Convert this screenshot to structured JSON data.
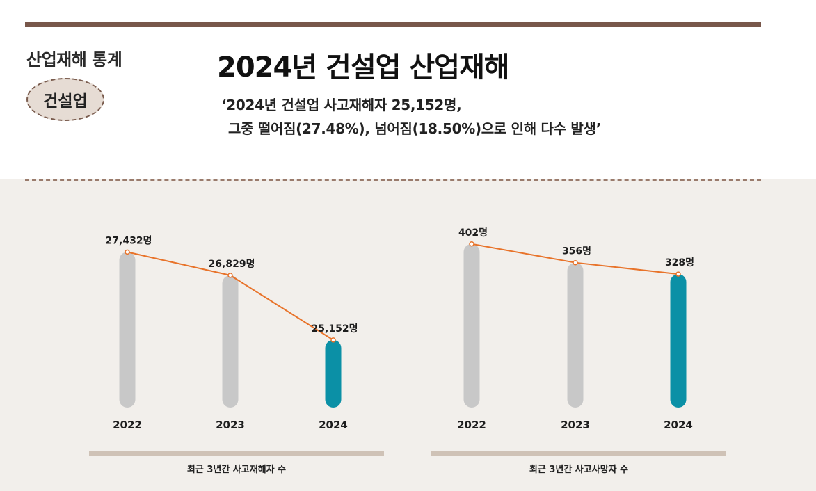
{
  "header": {
    "section_label": "산업재해 통계",
    "badge": "건설업",
    "title": "2024년 건설업 산업재해",
    "subtitle_line1": "‘2024년 건설업 사고재해자 25,152명,",
    "subtitle_line2": "그중 떨어짐(27.48%), 넘어짐(18.50%)으로 인해 다수 발생’"
  },
  "colors": {
    "bar_past": "#c8c8c8",
    "bar_current": "#0b90a6",
    "line": "#e8732a",
    "rule": "#78574a"
  },
  "chart_data": [
    {
      "type": "bar",
      "categories": [
        "2022",
        "2023",
        "2024"
      ],
      "values": [
        27432,
        26829,
        25152
      ],
      "value_labels": [
        "27,432명",
        "26,829명",
        "25,152명"
      ],
      "highlight_index": 2,
      "overlay": "line",
      "title": "최근 3년간 사고재해자 수",
      "ylim": [
        23400,
        27800
      ]
    },
    {
      "type": "bar",
      "categories": [
        "2022",
        "2023",
        "2024"
      ],
      "values": [
        402,
        356,
        328
      ],
      "value_labels": [
        "402명",
        "356명",
        "328명"
      ],
      "highlight_index": 2,
      "overlay": "line",
      "title": "최근 3년간 사고사망자 수",
      "ylim": [
        0,
        417
      ]
    }
  ]
}
